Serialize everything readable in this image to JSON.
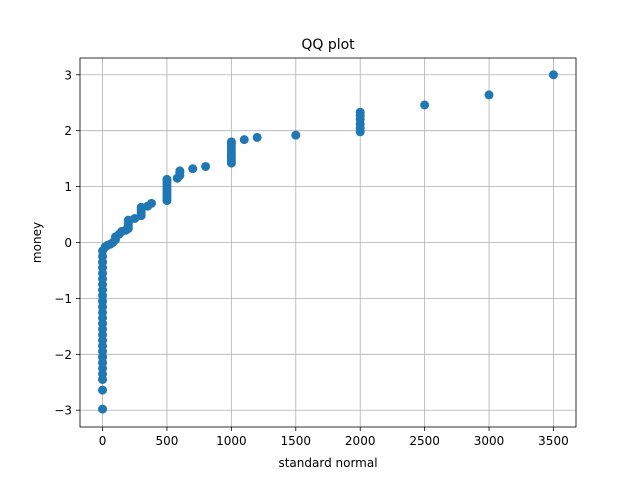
{
  "chart_data": {
    "type": "scatter",
    "title": "QQ plot",
    "xlabel": "standard normal",
    "ylabel": "money",
    "xlim": [
      -175,
      3675
    ],
    "ylim": [
      -3.3,
      3.3
    ],
    "xticks": [
      0,
      500,
      1000,
      1500,
      2000,
      2500,
      3000,
      3500
    ],
    "xtick_labels": [
      "0",
      "500",
      "1000",
      "1500",
      "2000",
      "2500",
      "3000",
      "3500"
    ],
    "yticks": [
      -3,
      -2,
      -1,
      0,
      1,
      2,
      3
    ],
    "ytick_labels": [
      "−3",
      "−2",
      "−1",
      "0",
      "1",
      "2",
      "3"
    ],
    "grid": true,
    "marker_color": "#1f77b4",
    "points": [
      [
        0,
        -2.98
      ],
      [
        0,
        -2.64
      ],
      [
        0,
        -2.45
      ],
      [
        0,
        -2.35
      ],
      [
        0,
        -2.25
      ],
      [
        0,
        -2.15
      ],
      [
        0,
        -2.05
      ],
      [
        0,
        -1.95
      ],
      [
        0,
        -1.85
      ],
      [
        0,
        -1.75
      ],
      [
        0,
        -1.65
      ],
      [
        0,
        -1.55
      ],
      [
        0,
        -1.45
      ],
      [
        0,
        -1.35
      ],
      [
        0,
        -1.25
      ],
      [
        0,
        -1.15
      ],
      [
        0,
        -1.05
      ],
      [
        0,
        -0.95
      ],
      [
        0,
        -0.85
      ],
      [
        0,
        -0.75
      ],
      [
        0,
        -0.65
      ],
      [
        0,
        -0.55
      ],
      [
        0,
        -0.45
      ],
      [
        0,
        -0.35
      ],
      [
        0,
        -0.25
      ],
      [
        0,
        -0.15
      ],
      [
        20,
        -0.08
      ],
      [
        40,
        -0.05
      ],
      [
        60,
        -0.03
      ],
      [
        80,
        0.0
      ],
      [
        100,
        0.05
      ],
      [
        100,
        0.1
      ],
      [
        130,
        0.15
      ],
      [
        150,
        0.2
      ],
      [
        180,
        0.22
      ],
      [
        200,
        0.25
      ],
      [
        200,
        0.3
      ],
      [
        200,
        0.35
      ],
      [
        200,
        0.4
      ],
      [
        250,
        0.43
      ],
      [
        300,
        0.48
      ],
      [
        300,
        0.53
      ],
      [
        300,
        0.58
      ],
      [
        300,
        0.63
      ],
      [
        350,
        0.65
      ],
      [
        380,
        0.7
      ],
      [
        500,
        0.75
      ],
      [
        500,
        0.8
      ],
      [
        500,
        0.85
      ],
      [
        500,
        0.9
      ],
      [
        500,
        0.95
      ],
      [
        500,
        1.0
      ],
      [
        500,
        1.05
      ],
      [
        500,
        1.1
      ],
      [
        500,
        1.13
      ],
      [
        580,
        1.15
      ],
      [
        600,
        1.2
      ],
      [
        600,
        1.25
      ],
      [
        600,
        1.28
      ],
      [
        700,
        1.32
      ],
      [
        800,
        1.36
      ],
      [
        1000,
        1.42
      ],
      [
        1000,
        1.47
      ],
      [
        1000,
        1.52
      ],
      [
        1000,
        1.57
      ],
      [
        1000,
        1.62
      ],
      [
        1000,
        1.67
      ],
      [
        1000,
        1.72
      ],
      [
        1000,
        1.77
      ],
      [
        1000,
        1.8
      ],
      [
        1100,
        1.84
      ],
      [
        1200,
        1.88
      ],
      [
        1500,
        1.92
      ],
      [
        2000,
        1.98
      ],
      [
        2000,
        2.05
      ],
      [
        2000,
        2.12
      ],
      [
        2000,
        2.2
      ],
      [
        2000,
        2.27
      ],
      [
        2000,
        2.33
      ],
      [
        2500,
        2.46
      ],
      [
        3000,
        2.64
      ],
      [
        3500,
        3.0
      ]
    ]
  }
}
